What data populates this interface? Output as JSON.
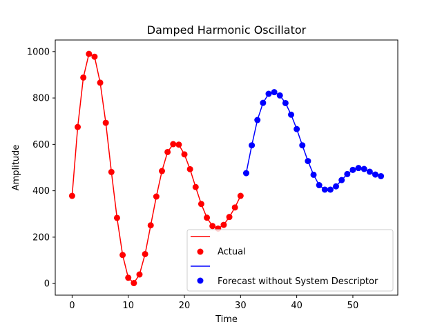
{
  "chart_data": {
    "type": "line",
    "title": "Damped Harmonic Oscillator",
    "xlabel": "Time",
    "ylabel": "Amplitude",
    "xlim": [
      -3,
      58
    ],
    "ylim": [
      -50,
      1050
    ],
    "xticks": [
      0,
      10,
      20,
      30,
      40,
      50
    ],
    "yticks": [
      0,
      200,
      400,
      600,
      800,
      1000
    ],
    "grid": false,
    "legend_position": "lower right",
    "series": [
      {
        "name": "Actual",
        "color": "#ff0000",
        "marker": "circle",
        "x": [
          0,
          1,
          2,
          3,
          4,
          5,
          6,
          7,
          8,
          9,
          10,
          11,
          12,
          13,
          14,
          15,
          16,
          17,
          18,
          19,
          20,
          21,
          22,
          23,
          24,
          25,
          26,
          27,
          28,
          29,
          30
        ],
        "y": [
          378,
          675,
          888,
          990,
          978,
          866,
          693,
          481,
          283,
          123,
          25,
          2,
          39,
          127,
          251,
          375,
          485,
          567,
          601,
          599,
          557,
          493,
          416,
          343,
          284,
          248,
          237,
          253,
          287,
          328,
          378
        ]
      },
      {
        "name": "Forecast without System Descriptor",
        "color": "#0000ff",
        "marker": "circle",
        "x": [
          31,
          32,
          33,
          34,
          35,
          36,
          37,
          38,
          39,
          40,
          41,
          42,
          43,
          44,
          45,
          46,
          47,
          48,
          49,
          50,
          51,
          52,
          53,
          54,
          55
        ],
        "y": [
          476,
          596,
          705,
          779,
          818,
          825,
          811,
          778,
          728,
          666,
          596,
          528,
          469,
          424,
          405,
          405,
          419,
          446,
          472,
          490,
          498,
          494,
          482,
          470,
          463
        ]
      }
    ]
  }
}
